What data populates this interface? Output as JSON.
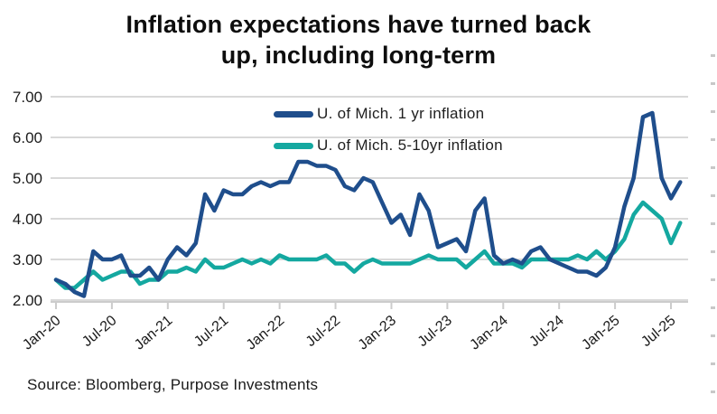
{
  "title": "Inflation expectations have turned back\nup, including long-term",
  "source": "Source: Bloomberg, Purpose Investments",
  "chart_data": {
    "type": "line",
    "title": "Inflation expectations have turned back up, including long-term",
    "xlabel": "",
    "ylabel": "",
    "ylim": [
      2.0,
      7.0
    ],
    "grid": true,
    "legend_position": "top-center",
    "y_tick_values": [
      2,
      3,
      4,
      5,
      6,
      7
    ],
    "y_tick_labels": [
      "2.00",
      "3.00",
      "4.00",
      "5.00",
      "6.00",
      "7.00"
    ],
    "x_tick_labels": [
      "Jan-20",
      "Jul-20",
      "Jan-21",
      "Jul-21",
      "Jan-22",
      "Jul-22",
      "Jan-23",
      "Jul-23",
      "Jan-24",
      "Jul-24",
      "Jan-25",
      "Jul-25"
    ],
    "categories": [
      "Jan-20",
      "Feb-20",
      "Mar-20",
      "Apr-20",
      "May-20",
      "Jun-20",
      "Jul-20",
      "Aug-20",
      "Sep-20",
      "Oct-20",
      "Nov-20",
      "Dec-20",
      "Jan-21",
      "Feb-21",
      "Mar-21",
      "Apr-21",
      "May-21",
      "Jun-21",
      "Jul-21",
      "Aug-21",
      "Sep-21",
      "Oct-21",
      "Nov-21",
      "Dec-21",
      "Jan-22",
      "Feb-22",
      "Mar-22",
      "Apr-22",
      "May-22",
      "Jun-22",
      "Jul-22",
      "Aug-22",
      "Sep-22",
      "Oct-22",
      "Nov-22",
      "Dec-22",
      "Jan-23",
      "Feb-23",
      "Mar-23",
      "Apr-23",
      "May-23",
      "Jun-23",
      "Jul-23",
      "Aug-23",
      "Sep-23",
      "Oct-23",
      "Nov-23",
      "Dec-23",
      "Jan-24",
      "Feb-24",
      "Mar-24",
      "Apr-24",
      "May-24",
      "Jun-24",
      "Jul-24",
      "Aug-24",
      "Sep-24",
      "Oct-24",
      "Nov-24",
      "Dec-24",
      "Jan-25",
      "Feb-25",
      "Mar-25",
      "Apr-25",
      "May-25",
      "Jun-25",
      "Jul-25",
      "Aug-25"
    ],
    "series": [
      {
        "name": "U. of Mich. 1 yr inflation",
        "color": "#1f4e8c",
        "values": [
          2.5,
          2.4,
          2.2,
          2.1,
          3.2,
          3.0,
          3.0,
          3.1,
          2.6,
          2.6,
          2.8,
          2.5,
          3.0,
          3.3,
          3.1,
          3.4,
          4.6,
          4.2,
          4.7,
          4.6,
          4.6,
          4.8,
          4.9,
          4.8,
          4.9,
          4.9,
          5.4,
          5.4,
          5.3,
          5.3,
          5.2,
          4.8,
          4.7,
          5.0,
          4.9,
          4.4,
          3.9,
          4.1,
          3.6,
          4.6,
          4.2,
          3.3,
          3.4,
          3.5,
          3.2,
          4.2,
          4.5,
          3.1,
          2.9,
          3.0,
          2.9,
          3.2,
          3.3,
          3.0,
          2.9,
          2.8,
          2.7,
          2.7,
          2.6,
          2.8,
          3.3,
          4.3,
          5.0,
          6.5,
          6.6,
          5.0,
          4.5,
          4.9
        ]
      },
      {
        "name": "U. of Mich. 5-10yr inflation",
        "color": "#14a8a0",
        "values": [
          2.5,
          2.3,
          2.3,
          2.5,
          2.7,
          2.5,
          2.6,
          2.7,
          2.7,
          2.4,
          2.5,
          2.5,
          2.7,
          2.7,
          2.8,
          2.7,
          3.0,
          2.8,
          2.8,
          2.9,
          3.0,
          2.9,
          3.0,
          2.9,
          3.1,
          3.0,
          3.0,
          3.0,
          3.0,
          3.1,
          2.9,
          2.9,
          2.7,
          2.9,
          3.0,
          2.9,
          2.9,
          2.9,
          2.9,
          3.0,
          3.1,
          3.0,
          3.0,
          3.0,
          2.8,
          3.0,
          3.2,
          2.9,
          2.9,
          2.9,
          2.8,
          3.0,
          3.0,
          3.0,
          3.0,
          3.0,
          3.1,
          3.0,
          3.2,
          3.0,
          3.2,
          3.5,
          4.1,
          4.4,
          4.2,
          4.0,
          3.4,
          3.9
        ]
      }
    ],
    "colors": {
      "grid": "#d9d9d9",
      "axis": "#cccccc",
      "tick": "#cccccc",
      "label_text": "#1a1a1a",
      "edge_dashes": "#c8c8c8"
    }
  }
}
